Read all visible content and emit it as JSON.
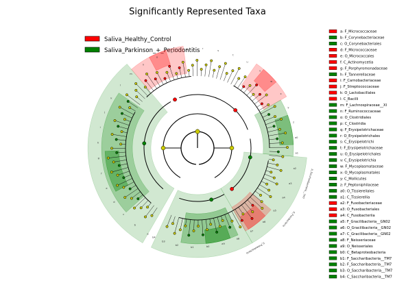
{
  "title": "Significantly Represented Taxa",
  "colors": {
    "healthy": "#ff0000",
    "parkinson": "#008000",
    "node_neutral": "#cccc00",
    "tree_line": "#000000"
  },
  "legend": [
    {
      "label": "Saliva_Healthy_Control",
      "group": "healthy"
    },
    {
      "label": "Saliva_Parkinson_+_Periodontitis",
      "group": "parkinson"
    }
  ],
  "taxa": [
    {
      "label": "a: F_Micrococcaceae",
      "group": "healthy"
    },
    {
      "label": "b: F_Corynebacteriaceae",
      "group": "parkinson"
    },
    {
      "label": "c: O_Corynebacteriales",
      "group": "parkinson"
    },
    {
      "label": "d: F_Micrococcaceae",
      "group": "healthy"
    },
    {
      "label": "e: O_Micrococcales",
      "group": "healthy"
    },
    {
      "label": "f: C_Actinomycetia",
      "group": "healthy"
    },
    {
      "label": "g: F_Porphyromonadaceae",
      "group": "healthy"
    },
    {
      "label": "h: F_Tannerellaceae",
      "group": "parkinson"
    },
    {
      "label": "i: F_Carnobacteriaceae",
      "group": "healthy"
    },
    {
      "label": "j: F_Streptococcaceae",
      "group": "healthy"
    },
    {
      "label": "k: O_Lactobacillales",
      "group": "healthy"
    },
    {
      "label": "l: C_Bacilli",
      "group": "healthy"
    },
    {
      "label": "m: F_Lachnospiraceae__XI",
      "group": "parkinson"
    },
    {
      "label": "n: F_Ruminococcaceae",
      "group": "parkinson"
    },
    {
      "label": "o: O_Clostridiales",
      "group": "parkinson"
    },
    {
      "label": "p: C_Clostridia",
      "group": "parkinson"
    },
    {
      "label": "q: F_Erysipelotrichaceae",
      "group": "parkinson"
    },
    {
      "label": "r: O_Erysipelotrichales",
      "group": "parkinson"
    },
    {
      "label": "s: C_Erysipelotrichi",
      "group": "parkinson"
    },
    {
      "label": "t: F_Erysipelotrichaceae",
      "group": "parkinson"
    },
    {
      "label": "u: O_Erysipelotrichales",
      "group": "parkinson"
    },
    {
      "label": "v: C_Erysipelotrichia",
      "group": "parkinson"
    },
    {
      "label": "w: F_Mycoplasmataceae",
      "group": "parkinson"
    },
    {
      "label": "x: O_Mycoplasmatales",
      "group": "parkinson"
    },
    {
      "label": "y: C_Mollicutes",
      "group": "parkinson"
    },
    {
      "label": "z: F_Peptoniphilaceae",
      "group": "parkinson"
    },
    {
      "label": "a0: O_Tissierellales",
      "group": "parkinson"
    },
    {
      "label": "a1: C_Tissierellia",
      "group": "parkinson"
    },
    {
      "label": "a2: F_Fusobacteriaceae",
      "group": "healthy"
    },
    {
      "label": "a3: O_Fusobacteriales",
      "group": "healthy"
    },
    {
      "label": "a4: C_Fusobacteriia",
      "group": "healthy"
    },
    {
      "label": "a5: F_Gracilibacteria__GN02",
      "group": "parkinson"
    },
    {
      "label": "a6: O_Gracilibacteria__GN02",
      "group": "parkinson"
    },
    {
      "label": "a7: C_Gracilibacteria__GN02",
      "group": "parkinson"
    },
    {
      "label": "a8: F_Neisseriaceae",
      "group": "parkinson"
    },
    {
      "label": "a9: O_Neisseriales",
      "group": "parkinson"
    },
    {
      "label": "b0: C_Betaproteobacteria",
      "group": "parkinson"
    },
    {
      "label": "b1: F_Saccharibacteria__TM7",
      "group": "parkinson"
    },
    {
      "label": "b2: F_Saccharibacteria__TM7",
      "group": "parkinson"
    },
    {
      "label": "b3: O_Saccharibacteria__TM7",
      "group": "parkinson"
    },
    {
      "label": "b4: C_Saccharibacteria__TM7",
      "group": "parkinson"
    }
  ],
  "clade_labels": [
    "a",
    "b",
    "c",
    "d",
    "e",
    "f",
    "g",
    "h",
    "i",
    "j",
    "k",
    "l",
    "m",
    "n",
    "o",
    "p",
    "q",
    "r",
    "s",
    "t",
    "u",
    "v",
    "w",
    "x",
    "y",
    "z",
    "a0",
    "a1",
    "a2",
    "a3",
    "a4",
    "a5",
    "a6",
    "a7",
    "a8",
    "a9",
    "b0",
    "b1",
    "b2",
    "b3",
    "b4"
  ],
  "outer_labels": [
    "p_Saccharibacteria__TM7",
    "p_Fusobacteria",
    "p_Proteobacteria"
  ]
}
